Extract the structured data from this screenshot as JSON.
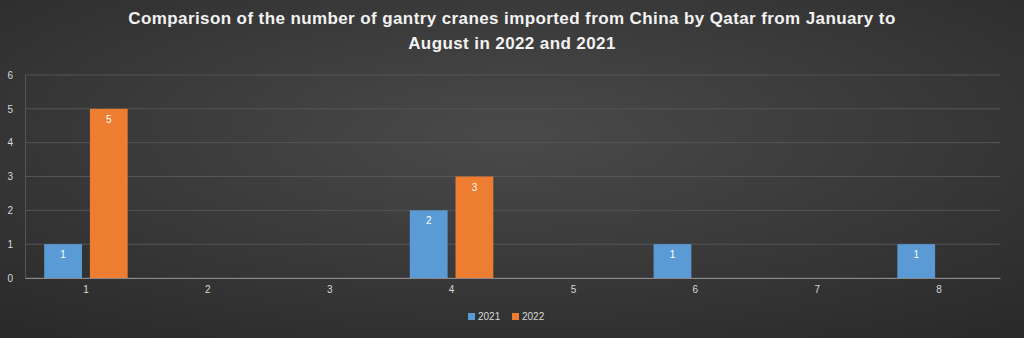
{
  "chart_data": {
    "type": "bar",
    "title": "Comparison of the number of gantry cranes imported from China by Qatar from January to August in 2022 and 2021",
    "categories": [
      "1",
      "2",
      "3",
      "4",
      "5",
      "6",
      "7",
      "8"
    ],
    "series": [
      {
        "name": "2021",
        "color": "#5b9bd5",
        "values": [
          1,
          null,
          null,
          2,
          null,
          1,
          null,
          1
        ]
      },
      {
        "name": "2022",
        "color": "#ed7d31",
        "values": [
          5,
          null,
          null,
          3,
          null,
          null,
          null,
          null
        ]
      }
    ],
    "ylim": [
      0,
      6
    ],
    "yticks": [
      0,
      1,
      2,
      3,
      4,
      5,
      6
    ],
    "grid": true,
    "legend": "bottom",
    "data_labels": true
  }
}
